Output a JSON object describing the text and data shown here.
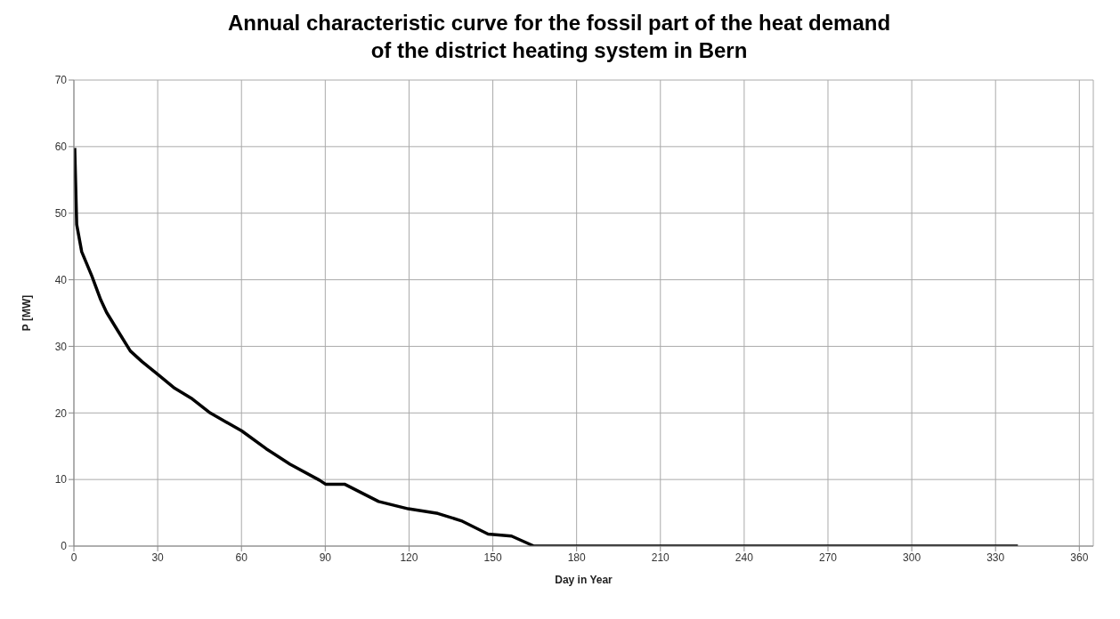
{
  "chart_data": {
    "type": "line",
    "title": "Annual characteristic curve for the fossil part of the heat demand\nof the district  heating system in Bern",
    "xlabel": "Day in Year",
    "ylabel": "P [MW]",
    "x": [
      0.3,
      1,
      2.8,
      6.4,
      9.6,
      11.7,
      15.5,
      20.2,
      24.4,
      30.3,
      36.1,
      42.4,
      48.8,
      60.1,
      68.9,
      77.4,
      87.9,
      90.1,
      96.9,
      109.1,
      119.7,
      130.3,
      138.7,
      148.3,
      156.7,
      163.1,
      164.7,
      338
    ],
    "series": [
      {
        "color": "#000000",
        "values": [
          59.8,
          48.3,
          44.2,
          40.6,
          37.0,
          35.1,
          32.5,
          29.3,
          27.7,
          25.7,
          23.7,
          22.1,
          20.0,
          17.3,
          14.6,
          12.3,
          9.9,
          9.3,
          9.3,
          6.7,
          5.6,
          4.9,
          3.8,
          1.8,
          1.5,
          0.3,
          0,
          0
        ]
      }
    ],
    "xlim": [
      0,
      365
    ],
    "xticks": [
      0,
      30,
      60,
      90,
      120,
      150,
      180,
      210,
      240,
      270,
      300,
      330,
      360
    ],
    "ylim": [
      0,
      70
    ],
    "yticks": [
      0,
      10,
      20,
      30,
      40,
      50,
      60,
      70
    ],
    "grid": true,
    "marker": "none",
    "line_style": "solid"
  }
}
